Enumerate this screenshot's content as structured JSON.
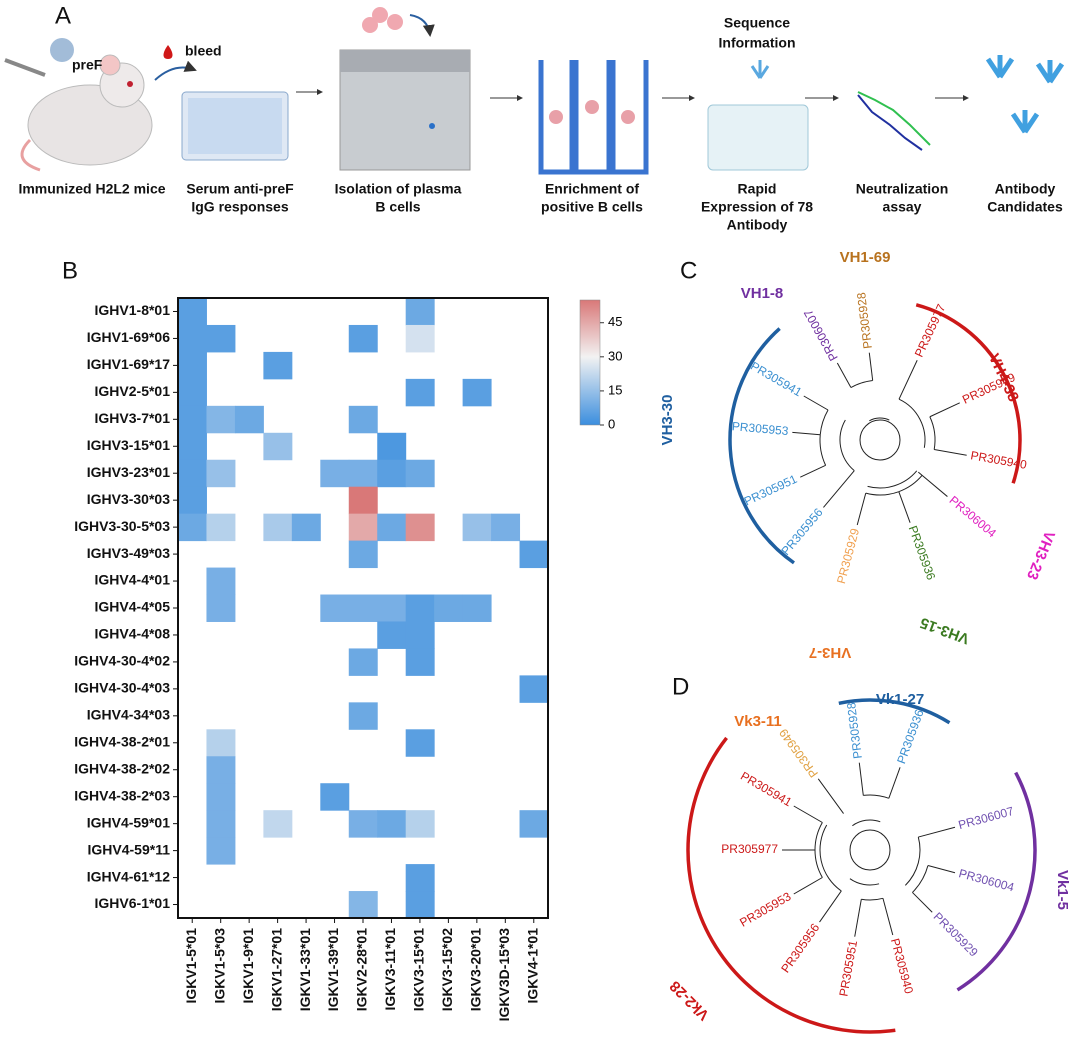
{
  "panel_a": {
    "label": "A",
    "antigen": "preF",
    "bleed": "bleed",
    "steps": [
      {
        "label": [
          "Immunized H2L2 mice"
        ]
      },
      {
        "label": [
          "Serum anti-preF",
          "IgG responses"
        ]
      },
      {
        "label": [
          "Isolation of plasma",
          "B cells"
        ]
      },
      {
        "label": [
          "Enrichment of",
          "positive B cells"
        ]
      },
      {
        "label": [
          "Rapid",
          "Expression of 78",
          "Antibody"
        ],
        "top": [
          "Sequence",
          "Information"
        ]
      },
      {
        "label": [
          "Neutralization",
          "assay"
        ]
      },
      {
        "label": [
          "Antibody",
          "Candidates"
        ]
      }
    ]
  },
  "chart_data": {
    "type": "heatmap",
    "panel_label": "B",
    "rows": [
      "IGHV1-8*01",
      "IGHV1-69*06",
      "IGHV1-69*17",
      "IGHV2-5*01",
      "IGHV3-7*01",
      "IGHV3-15*01",
      "IGHV3-23*01",
      "IGHV3-30*03",
      "IGHV3-30-5*03",
      "IGHV3-49*03",
      "IGHV4-4*01",
      "IGHV4-4*05",
      "IGHV4-4*08",
      "IGHV4-30-4*02",
      "IGHV4-30-4*03",
      "IGHV4-34*03",
      "IGHV4-38-2*01",
      "IGHV4-38-2*02",
      "IGHV4-38-2*03",
      "IGHV4-59*01",
      "IGHV4-59*11",
      "IGHV4-61*12",
      "IGHV6-1*01"
    ],
    "columns": [
      "IGKV1-5*01",
      "IGKV1-5*03",
      "IGKV1-9*01",
      "IGKV1-27*01",
      "IGKV1-33*01",
      "IGKV1-39*01",
      "IGKV2-28*01",
      "IGKV3-11*01",
      "IGKV3-15*01",
      "IGKV3-15*02",
      "IGKV3-20*01",
      "IGKV3D-15*03",
      "IGKV4-1*01"
    ],
    "values": [
      [
        5,
        null,
        null,
        null,
        null,
        null,
        null,
        null,
        8,
        null,
        null,
        null,
        null
      ],
      [
        5,
        5,
        null,
        null,
        null,
        null,
        5,
        null,
        25,
        null,
        null,
        null,
        null
      ],
      [
        5,
        null,
        null,
        5,
        null,
        null,
        null,
        null,
        null,
        null,
        null,
        null,
        null
      ],
      [
        5,
        null,
        null,
        null,
        null,
        null,
        null,
        null,
        5,
        null,
        5,
        null,
        null
      ],
      [
        5,
        12,
        8,
        null,
        null,
        null,
        8,
        null,
        null,
        null,
        null,
        null,
        null
      ],
      [
        5,
        null,
        null,
        15,
        null,
        null,
        null,
        3,
        null,
        null,
        null,
        null,
        null
      ],
      [
        5,
        15,
        null,
        null,
        null,
        10,
        10,
        5,
        8,
        null,
        null,
        null,
        null
      ],
      [
        5,
        null,
        null,
        null,
        null,
        null,
        55,
        null,
        null,
        null,
        null,
        null,
        null
      ],
      [
        8,
        20,
        null,
        18,
        8,
        null,
        45,
        8,
        50,
        null,
        15,
        10,
        null
      ],
      [
        null,
        null,
        null,
        null,
        null,
        null,
        8,
        null,
        null,
        null,
        null,
        null,
        5
      ],
      [
        null,
        10,
        null,
        null,
        null,
        null,
        null,
        null,
        null,
        null,
        null,
        null,
        null
      ],
      [
        null,
        10,
        null,
        null,
        null,
        10,
        10,
        10,
        5,
        8,
        8,
        null,
        null
      ],
      [
        null,
        null,
        null,
        null,
        null,
        null,
        null,
        5,
        5,
        null,
        null,
        null,
        null
      ],
      [
        null,
        null,
        null,
        null,
        null,
        null,
        8,
        null,
        5,
        null,
        null,
        null,
        null
      ],
      [
        null,
        null,
        null,
        null,
        null,
        null,
        null,
        null,
        null,
        null,
        null,
        null,
        5
      ],
      [
        null,
        null,
        null,
        null,
        null,
        null,
        8,
        null,
        null,
        null,
        null,
        null,
        null
      ],
      [
        null,
        20,
        null,
        null,
        null,
        null,
        null,
        null,
        5,
        null,
        null,
        null,
        null
      ],
      [
        null,
        10,
        null,
        null,
        null,
        null,
        null,
        null,
        null,
        null,
        null,
        null,
        null
      ],
      [
        null,
        10,
        null,
        null,
        null,
        5,
        null,
        null,
        null,
        null,
        null,
        null,
        null
      ],
      [
        null,
        10,
        null,
        22,
        null,
        null,
        10,
        8,
        20,
        null,
        null,
        null,
        8
      ],
      [
        null,
        10,
        null,
        null,
        null,
        null,
        null,
        null,
        null,
        null,
        null,
        null,
        null
      ],
      [
        null,
        null,
        null,
        null,
        null,
        null,
        null,
        null,
        5,
        null,
        null,
        null,
        null
      ],
      [
        null,
        null,
        null,
        null,
        null,
        null,
        12,
        null,
        5,
        null,
        null,
        null,
        null
      ]
    ],
    "colorscale": [
      [
        0,
        "#3b8ede"
      ],
      [
        30,
        "#f2f2f2"
      ],
      [
        55,
        "#d97878"
      ]
    ],
    "clim": [
      0,
      55
    ],
    "cticks": [
      0,
      15,
      30,
      45
    ]
  },
  "panel_c": {
    "label": "C",
    "leaves": [
      {
        "name": "PR306007",
        "color": "#7030a0"
      },
      {
        "name": "PR305928",
        "color": "#b8721e"
      },
      {
        "name": "PR305977",
        "color": "#cc1818"
      },
      {
        "name": "PR305949",
        "color": "#cc1818"
      },
      {
        "name": "PR305940",
        "color": "#cc1818"
      },
      {
        "name": "PR306004",
        "color": "#e020c0"
      },
      {
        "name": "PR305936",
        "color": "#3a7a20"
      },
      {
        "name": "PR305929",
        "color": "#f0a050"
      },
      {
        "name": "PR305956",
        "color": "#3a8fd0"
      },
      {
        "name": "PR305951",
        "color": "#3a8fd0"
      },
      {
        "name": "PR305953",
        "color": "#3a8fd0"
      },
      {
        "name": "PR305941",
        "color": "#3a8fd0"
      }
    ],
    "clades": [
      {
        "name": "VH1-8",
        "color": "#7030a0"
      },
      {
        "name": "VH1-69",
        "color": "#b8721e"
      },
      {
        "name": "VH4-38",
        "color": "#cc1818"
      },
      {
        "name": "VH3-23",
        "color": "#e020c0"
      },
      {
        "name": "VH3-15",
        "color": "#3a7a20"
      },
      {
        "name": "VH3-7",
        "color": "#e87020"
      },
      {
        "name": "VH3-30",
        "color": "#1f5fa0"
      }
    ]
  },
  "panel_d": {
    "label": "D",
    "leaves": [
      {
        "name": "PR305949",
        "color": "#e0a040"
      },
      {
        "name": "PR305928",
        "color": "#3a8fd0"
      },
      {
        "name": "PR305936",
        "color": "#3a8fd0"
      },
      {
        "name": "PR306007",
        "color": "#7050b0"
      },
      {
        "name": "PR306004",
        "color": "#7050b0"
      },
      {
        "name": "PR305929",
        "color": "#7050b0"
      },
      {
        "name": "PR305940",
        "color": "#cc1818"
      },
      {
        "name": "PR305951",
        "color": "#cc1818"
      },
      {
        "name": "PR305956",
        "color": "#cc1818"
      },
      {
        "name": "PR305953",
        "color": "#cc1818"
      },
      {
        "name": "PR305977",
        "color": "#cc1818"
      },
      {
        "name": "PR305941",
        "color": "#cc1818"
      }
    ],
    "clades": [
      {
        "name": "Vk3-11",
        "color": "#e87020"
      },
      {
        "name": "Vk1-27",
        "color": "#1f5fa0"
      },
      {
        "name": "Vk1-5",
        "color": "#7030a0"
      },
      {
        "name": "Vk2-28",
        "color": "#cc1818"
      }
    ]
  }
}
